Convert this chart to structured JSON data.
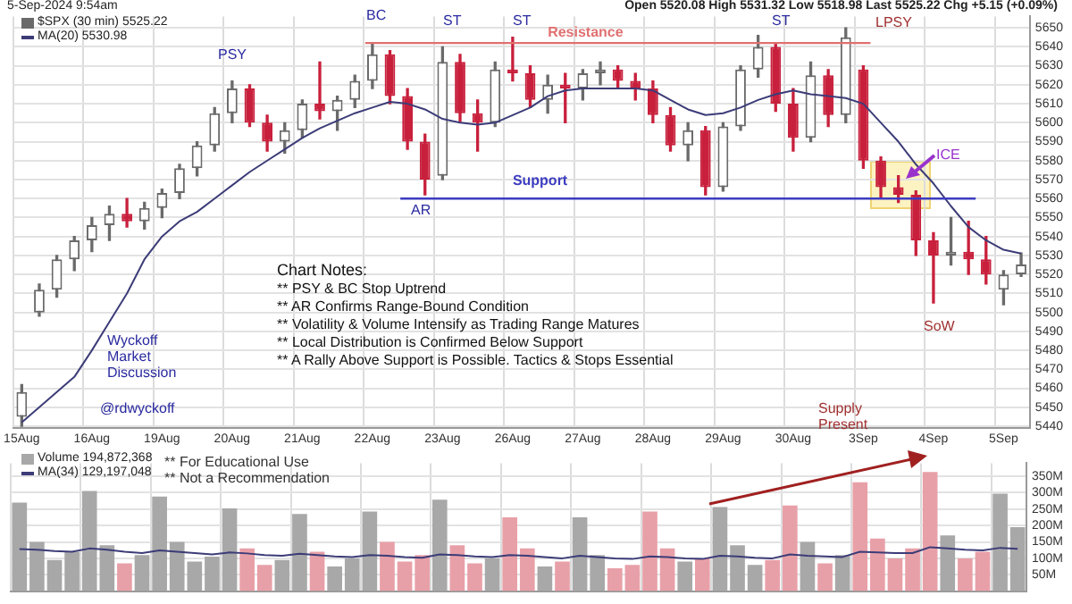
{
  "chart_data": [
    {
      "type": "candlestick",
      "title": "5-Sep-2024 9:54am",
      "subtitle": "Open 5520.08 High 5531.32 Low 5518.98 Last 5525.22 Chg +5.15 (+0.09%)",
      "categories": [
        "15Aug",
        null,
        null,
        null,
        "16Aug",
        null,
        null,
        null,
        "19Aug",
        null,
        null,
        null,
        "20Aug",
        null,
        null,
        null,
        "21Aug",
        null,
        null,
        null,
        "22Aug",
        null,
        null,
        null,
        "23Aug",
        null,
        null,
        null,
        "26Aug",
        null,
        null,
        null,
        "27Aug",
        null,
        null,
        null,
        "28Aug",
        null,
        null,
        null,
        "29Aug",
        null,
        null,
        null,
        "30Aug",
        null,
        null,
        null,
        "3Sep",
        null,
        null,
        null,
        "4Sep",
        null,
        null,
        null,
        "5Sep",
        null
      ],
      "series": [
        {
          "type": "candlestick",
          "name": "$SPX (30 min) 5525.22",
          "ohlc": [
            [
              5445,
              5462,
              5440,
              5458
            ],
            [
              5500,
              5515,
              5498,
              5512
            ],
            [
              5512,
              5530,
              5508,
              5528
            ],
            [
              5528,
              5540,
              5522,
              5538
            ],
            [
              5538,
              5550,
              5532,
              5546
            ],
            [
              5546,
              5556,
              5538,
              5552
            ],
            [
              5552,
              5560,
              5545,
              5548
            ],
            [
              5548,
              5558,
              5544,
              5555
            ],
            [
              5555,
              5565,
              5550,
              5563
            ],
            [
              5563,
              5578,
              5560,
              5576
            ],
            [
              5576,
              5590,
              5572,
              5588
            ],
            [
              5588,
              5608,
              5585,
              5605
            ],
            [
              5605,
              5622,
              5600,
              5618
            ],
            [
              5618,
              5620,
              5598,
              5600
            ],
            [
              5600,
              5604,
              5585,
              5590
            ],
            [
              5590,
              5600,
              5584,
              5596
            ],
            [
              5596,
              5612,
              5592,
              5610
            ],
            [
              5610,
              5632,
              5602,
              5606
            ],
            [
              5606,
              5614,
              5596,
              5612
            ],
            [
              5612,
              5625,
              5608,
              5622
            ],
            [
              5622,
              5642,
              5618,
              5636
            ],
            [
              5636,
              5638,
              5610,
              5614
            ],
            [
              5614,
              5618,
              5586,
              5590
            ],
            [
              5590,
              5594,
              5562,
              5570
            ],
            [
              5572,
              5640,
              5570,
              5632
            ],
            [
              5632,
              5636,
              5600,
              5605
            ],
            [
              5605,
              5612,
              5585,
              5600
            ],
            [
              5600,
              5632,
              5598,
              5628
            ],
            [
              5628,
              5645,
              5622,
              5626
            ],
            [
              5626,
              5630,
              5608,
              5612
            ],
            [
              5612,
              5625,
              5605,
              5620
            ],
            [
              5620,
              5626,
              5600,
              5618
            ],
            [
              5618,
              5628,
              5612,
              5626
            ],
            [
              5626,
              5632,
              5620,
              5628
            ],
            [
              5628,
              5630,
              5618,
              5622
            ],
            [
              5622,
              5626,
              5612,
              5618
            ],
            [
              5618,
              5622,
              5600,
              5604
            ],
            [
              5604,
              5608,
              5585,
              5588
            ],
            [
              5588,
              5600,
              5580,
              5596
            ],
            [
              5596,
              5598,
              5562,
              5566
            ],
            [
              5566,
              5600,
              5564,
              5598
            ],
            [
              5598,
              5630,
              5596,
              5628
            ],
            [
              5628,
              5646,
              5624,
              5640
            ],
            [
              5640,
              5642,
              5606,
              5610
            ],
            [
              5610,
              5618,
              5585,
              5592
            ],
            [
              5592,
              5632,
              5590,
              5625
            ],
            [
              5625,
              5628,
              5598,
              5604
            ],
            [
              5604,
              5650,
              5600,
              5645
            ],
            [
              5628,
              5630,
              5576,
              5580
            ],
            [
              5580,
              5582,
              5560,
              5566
            ],
            [
              5566,
              5572,
              5558,
              5562
            ],
            [
              5562,
              5564,
              5530,
              5538
            ],
            [
              5538,
              5542,
              5505,
              5530
            ],
            [
              5530,
              5550,
              5525,
              5532
            ],
            [
              5532,
              5548,
              5520,
              5528
            ],
            [
              5528,
              5540,
              5515,
              5520
            ],
            [
              5512,
              5522,
              5504,
              5520
            ],
            [
              5520.08,
              5531.32,
              5518.98,
              5525.22
            ]
          ]
        },
        {
          "type": "line",
          "name": "MA(20) 5530.98",
          "color": "#3c3c78",
          "values": [
            5442,
            5450,
            5458,
            5466,
            5480,
            5495,
            5510,
            5528,
            5540,
            5548,
            5553,
            5560,
            5567,
            5574,
            5580,
            5586,
            5592,
            5597,
            5601,
            5605,
            5608,
            5611,
            5610,
            5607,
            5602,
            5600,
            5599,
            5600,
            5604,
            5608,
            5614,
            5617,
            5618,
            5618,
            5618,
            5618,
            5617,
            5612,
            5607,
            5604,
            5605,
            5608,
            5612,
            5615,
            5617,
            5615,
            5614,
            5613,
            5610,
            5600,
            5590,
            5578,
            5568,
            5556,
            5545,
            5538,
            5533,
            5531
          ]
        }
      ],
      "ylim": [
        5439,
        5656
      ],
      "yticks": [
        5440,
        5450,
        5460,
        5470,
        5480,
        5490,
        5500,
        5510,
        5520,
        5530,
        5540,
        5550,
        5560,
        5570,
        5580,
        5590,
        5600,
        5610,
        5620,
        5630,
        5640,
        5650
      ],
      "ref_lines": [
        {
          "axis": "y",
          "value": 5642,
          "label": "Resistance",
          "color": "#e07070"
        },
        {
          "axis": "y",
          "value": 5560,
          "label": "Support",
          "color": "#3c3cc0"
        }
      ],
      "annotations": [
        "PSY",
        "BC",
        "ST",
        "ST",
        "ST",
        "LPSY",
        "AR",
        "ICE",
        "SoW",
        "Wyckoff Market Discussion",
        "@rdwyckoff",
        "Chart Notes:",
        "** PSY & BC Stop Uptrend",
        "** AR Confirms Range-Bound Condition",
        "** Volatility & Volume Intensify as Trading Range Matures",
        "** Local Distribution is Confirmed Below Support",
        "** A Rally Above Support is Possible. Tactics & Stops Essential"
      ],
      "grid": true,
      "legend": "top left"
    },
    {
      "type": "bar",
      "categories": [
        null,
        null,
        null,
        null,
        null,
        null,
        null,
        null,
        null,
        null,
        null,
        null,
        null,
        null,
        null,
        null,
        null,
        null,
        null,
        null,
        null,
        null,
        null,
        null,
        null,
        null,
        null,
        null,
        null,
        null,
        null,
        null,
        null,
        null,
        null,
        null,
        null,
        null,
        null,
        null,
        null,
        null,
        null,
        null,
        null,
        null,
        null,
        null,
        null,
        null,
        null,
        null,
        null,
        null,
        null,
        null,
        null,
        null
      ],
      "series": [
        {
          "type": "bar",
          "name": "Volume 194,872,368",
          "values": [
            270,
            150,
            95,
            120,
            305,
            140,
            85,
            110,
            288,
            150,
            90,
            105,
            252,
            130,
            80,
            95,
            235,
            120,
            75,
            100,
            243,
            150,
            90,
            110,
            279,
            140,
            85,
            100,
            225,
            130,
            75,
            90,
            225,
            110,
            70,
            80,
            243,
            130,
            90,
            100,
            256,
            140,
            80,
            95,
            261,
            150,
            85,
            110,
            332,
            160,
            100,
            130,
            363,
            170,
            100,
            120,
            297,
            195
          ],
          "colors": [
            "#a8a8a8",
            "#a8a8a8",
            "#a8a8a8",
            "#a8a8a8",
            "#a8a8a8",
            "#a8a8a8",
            "#e8a0a8",
            "#a8a8a8",
            "#a8a8a8",
            "#a8a8a8",
            "#a8a8a8",
            "#a8a8a8",
            "#a8a8a8",
            "#e8a0a8",
            "#e8a0a8",
            "#a8a8a8",
            "#a8a8a8",
            "#e8a0a8",
            "#a8a8a8",
            "#a8a8a8",
            "#a8a8a8",
            "#e8a0a8",
            "#e8a0a8",
            "#e8a0a8",
            "#a8a8a8",
            "#e8a0a8",
            "#e8a0a8",
            "#a8a8a8",
            "#e8a0a8",
            "#e8a0a8",
            "#a8a8a8",
            "#e8a0a8",
            "#a8a8a8",
            "#a8a8a8",
            "#e8a0a8",
            "#e8a0a8",
            "#e8a0a8",
            "#e8a0a8",
            "#a8a8a8",
            "#e8a0a8",
            "#a8a8a8",
            "#a8a8a8",
            "#a8a8a8",
            "#e8a0a8",
            "#e8a0a8",
            "#a8a8a8",
            "#e8a0a8",
            "#a8a8a8",
            "#e8a0a8",
            "#e8a0a8",
            "#e8a0a8",
            "#e8a0a8",
            "#e8a0a8",
            "#a8a8a8",
            "#e8a0a8",
            "#e8a0a8",
            "#a8a8a8",
            "#a8a8a8"
          ]
        },
        {
          "type": "line",
          "name": "MA(34) 129,197,048",
          "color": "#3c3c78",
          "values": [
            128,
            126,
            122,
            120,
            130,
            126,
            120,
            116,
            124,
            120,
            116,
            112,
            118,
            115,
            110,
            108,
            114,
            110,
            106,
            104,
            110,
            108,
            104,
            102,
            112,
            110,
            106,
            104,
            110,
            108,
            104,
            100,
            108,
            104,
            100,
            98,
            106,
            104,
            100,
            98,
            108,
            106,
            102,
            100,
            112,
            108,
            106,
            104,
            120,
            118,
            116,
            116,
            134,
            130,
            126,
            124,
            132,
            129
          ]
        }
      ],
      "ylim": [
        0,
        390
      ],
      "yticks": [
        {
          "value": 50,
          "label": "50M"
        },
        {
          "value": 100,
          "label": "100M"
        },
        {
          "value": 150,
          "label": "150M"
        },
        {
          "value": 200,
          "label": "200M"
        },
        {
          "value": 250,
          "label": "250M"
        },
        {
          "value": 300,
          "label": "300M"
        },
        {
          "value": 350,
          "label": "350M"
        }
      ],
      "annotations": [
        "** For Educational Use",
        "** Not a Recommendation",
        "Supply Present"
      ],
      "grid": true,
      "legend": "top left",
      "tick_labels": "y"
    }
  ]
}
